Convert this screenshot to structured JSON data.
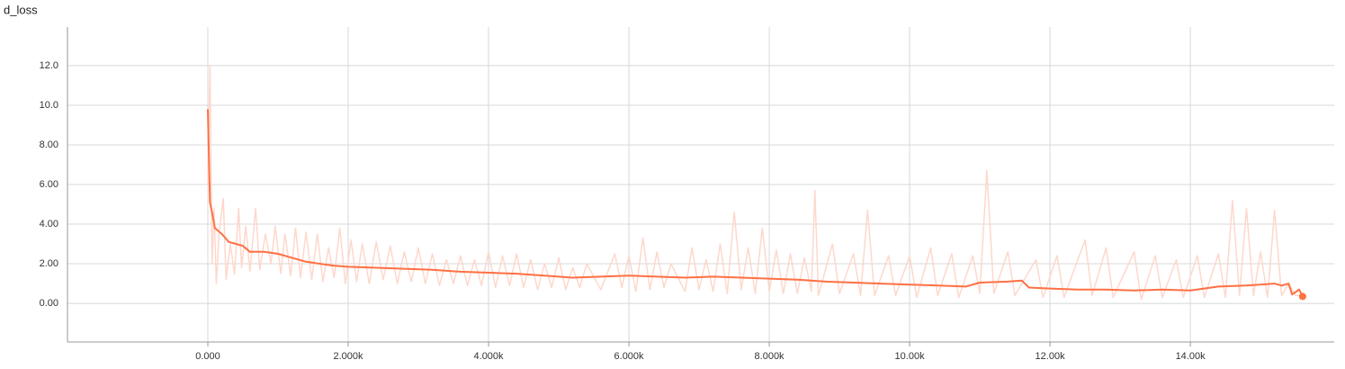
{
  "chart_data": {
    "type": "line",
    "title": "d_loss",
    "xlim": [
      -2000,
      16050
    ],
    "ylim": [
      -1.95,
      13.95
    ],
    "xticks": [
      {
        "value": 0,
        "label": "0.000"
      },
      {
        "value": 2000,
        "label": "2.000k"
      },
      {
        "value": 4000,
        "label": "4.000k"
      },
      {
        "value": 6000,
        "label": "6.000k"
      },
      {
        "value": 8000,
        "label": "8.000k"
      },
      {
        "value": 10000,
        "label": "10.00k"
      },
      {
        "value": 12000,
        "label": "12.00k"
      },
      {
        "value": 14000,
        "label": "14.00k"
      }
    ],
    "yticks": [
      {
        "value": 0,
        "label": "0.00"
      },
      {
        "value": 2,
        "label": "2.00"
      },
      {
        "value": 4,
        "label": "4.00"
      },
      {
        "value": 6,
        "label": "6.00"
      },
      {
        "value": 8,
        "label": "8.00"
      },
      {
        "value": 10,
        "label": "10.0"
      },
      {
        "value": 12,
        "label": "12.0"
      }
    ],
    "grid": true,
    "series": [
      {
        "color": "#fdd8cc",
        "x": [
          0,
          30,
          60,
          90,
          120,
          160,
          220,
          260,
          320,
          380,
          440,
          480,
          540,
          600,
          680,
          740,
          820,
          900,
          960,
          1040,
          1100,
          1180,
          1250,
          1320,
          1400,
          1480,
          1560,
          1640,
          1720,
          1800,
          1880,
          1960,
          2040,
          2120,
          2200,
          2300,
          2400,
          2500,
          2600,
          2700,
          2800,
          2900,
          3000,
          3100,
          3200,
          3300,
          3400,
          3500,
          3600,
          3700,
          3800,
          3900,
          4000,
          4100,
          4200,
          4300,
          4400,
          4500,
          4600,
          4700,
          4800,
          4900,
          5000,
          5100,
          5200,
          5300,
          5400,
          5600,
          5800,
          5900,
          6000,
          6100,
          6200,
          6300,
          6400,
          6500,
          6600,
          6800,
          6900,
          7000,
          7100,
          7200,
          7300,
          7400,
          7500,
          7600,
          7700,
          7800,
          7900,
          8000,
          8100,
          8200,
          8300,
          8400,
          8500,
          8600,
          8650,
          8700,
          8900,
          9000,
          9200,
          9300,
          9400,
          9500,
          9700,
          9800,
          10000,
          10100,
          10300,
          10400,
          10600,
          10700,
          10900,
          11000,
          11100,
          11200,
          11400,
          11500,
          11800,
          11900,
          12100,
          12200,
          12500,
          12600,
          12800,
          12900,
          13200,
          13300,
          13500,
          13600,
          13800,
          13900,
          14100,
          14200,
          14400,
          14500,
          14600,
          14700,
          14800,
          14900,
          15000,
          15100,
          15200,
          15300,
          15400,
          15500,
          15600
        ],
        "values": [
          6.0,
          12.0,
          2.0,
          4.8,
          1.0,
          3.5,
          5.3,
          1.2,
          3.0,
          1.5,
          4.8,
          1.8,
          3.9,
          1.6,
          4.8,
          1.7,
          3.5,
          2.0,
          3.9,
          1.5,
          3.5,
          1.4,
          3.8,
          1.3,
          3.6,
          1.2,
          3.5,
          1.1,
          2.8,
          1.3,
          3.8,
          1.0,
          3.2,
          1.1,
          3.0,
          1.0,
          3.1,
          1.2,
          2.9,
          1.0,
          2.6,
          1.1,
          2.8,
          1.0,
          2.5,
          0.9,
          2.2,
          1.0,
          2.4,
          0.9,
          2.2,
          0.9,
          2.6,
          0.8,
          2.4,
          0.9,
          2.5,
          0.8,
          2.2,
          0.7,
          2.0,
          0.8,
          2.3,
          0.7,
          1.8,
          0.8,
          2.0,
          0.7,
          2.5,
          0.8,
          2.4,
          0.6,
          3.3,
          0.7,
          2.6,
          0.8,
          2.0,
          0.6,
          2.8,
          0.7,
          2.2,
          0.6,
          3.0,
          0.5,
          4.6,
          0.7,
          2.8,
          0.5,
          3.8,
          0.6,
          2.7,
          0.5,
          2.5,
          0.5,
          2.3,
          0.6,
          5.7,
          0.4,
          3.0,
          0.5,
          2.5,
          0.4,
          4.7,
          0.4,
          2.4,
          0.4,
          2.4,
          0.3,
          2.8,
          0.4,
          2.5,
          0.3,
          2.4,
          0.5,
          6.7,
          0.5,
          2.6,
          0.4,
          2.2,
          0.3,
          2.4,
          0.3,
          3.2,
          0.4,
          2.8,
          0.3,
          2.6,
          0.2,
          2.4,
          0.3,
          2.2,
          0.3,
          2.4,
          0.3,
          2.5,
          0.3,
          5.2,
          0.4,
          4.8,
          0.4,
          2.6,
          0.3,
          4.7,
          0.4,
          1.0,
          0.4,
          0.4
        ]
      },
      {
        "color": "#ff7043",
        "x": [
          0,
          30,
          60,
          100,
          200,
          300,
          400,
          500,
          600,
          800,
          1000,
          1200,
          1400,
          1600,
          1800,
          2000,
          2400,
          2800,
          3200,
          3600,
          4000,
          4400,
          4800,
          5200,
          5600,
          6000,
          6400,
          6800,
          7200,
          7600,
          8000,
          8400,
          8800,
          9200,
          9600,
          10000,
          10400,
          10800,
          11000,
          11400,
          11600,
          11700,
          12000,
          12400,
          12800,
          13200,
          13600,
          14000,
          14400,
          14800,
          15200,
          15300,
          15400,
          15450,
          15550,
          15600
        ],
        "values": [
          9.8,
          5.1,
          4.6,
          3.8,
          3.5,
          3.1,
          3.0,
          2.9,
          2.6,
          2.6,
          2.5,
          2.3,
          2.1,
          2.0,
          1.9,
          1.85,
          1.8,
          1.75,
          1.7,
          1.6,
          1.55,
          1.5,
          1.4,
          1.3,
          1.35,
          1.4,
          1.35,
          1.3,
          1.35,
          1.3,
          1.25,
          1.2,
          1.1,
          1.05,
          1.0,
          0.95,
          0.9,
          0.85,
          1.05,
          1.1,
          1.15,
          0.8,
          0.75,
          0.7,
          0.7,
          0.65,
          0.7,
          0.65,
          0.85,
          0.9,
          1.0,
          0.9,
          1.0,
          0.45,
          0.7,
          0.35
        ]
      }
    ]
  }
}
